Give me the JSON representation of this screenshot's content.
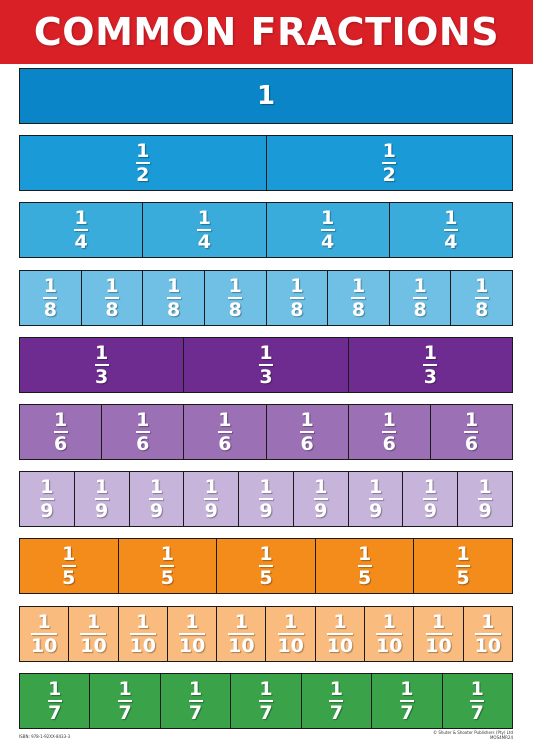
{
  "header": {
    "title": "COMMON FRACTIONS"
  },
  "rows": [
    {
      "denominator": "1",
      "whole": true,
      "count": 1,
      "color": "#0a86c8"
    },
    {
      "denominator": "2",
      "whole": false,
      "count": 2,
      "color": "#1a9ad6"
    },
    {
      "denominator": "4",
      "whole": false,
      "count": 4,
      "color": "#3aacdc"
    },
    {
      "denominator": "8",
      "whole": false,
      "count": 8,
      "color": "#70c0e6"
    },
    {
      "denominator": "3",
      "whole": false,
      "count": 3,
      "color": "#6e2c91"
    },
    {
      "denominator": "6",
      "whole": false,
      "count": 6,
      "color": "#9b70b5"
    },
    {
      "denominator": "9",
      "whole": false,
      "count": 9,
      "color": "#c7b4db"
    },
    {
      "denominator": "5",
      "whole": false,
      "count": 5,
      "color": "#f48c1c"
    },
    {
      "denominator": "10",
      "whole": false,
      "count": 10,
      "color": "#f9bc7e"
    },
    {
      "denominator": "7",
      "whole": false,
      "count": 7,
      "color": "#3aa34a"
    }
  ],
  "numerator": "1",
  "footer": {
    "isbn": "ISBN: 978-1-92XX-8433-3",
    "publisher": "© Shuter & Shooter Publishers (Pty) Ltd",
    "code": "MOS4MR24"
  }
}
